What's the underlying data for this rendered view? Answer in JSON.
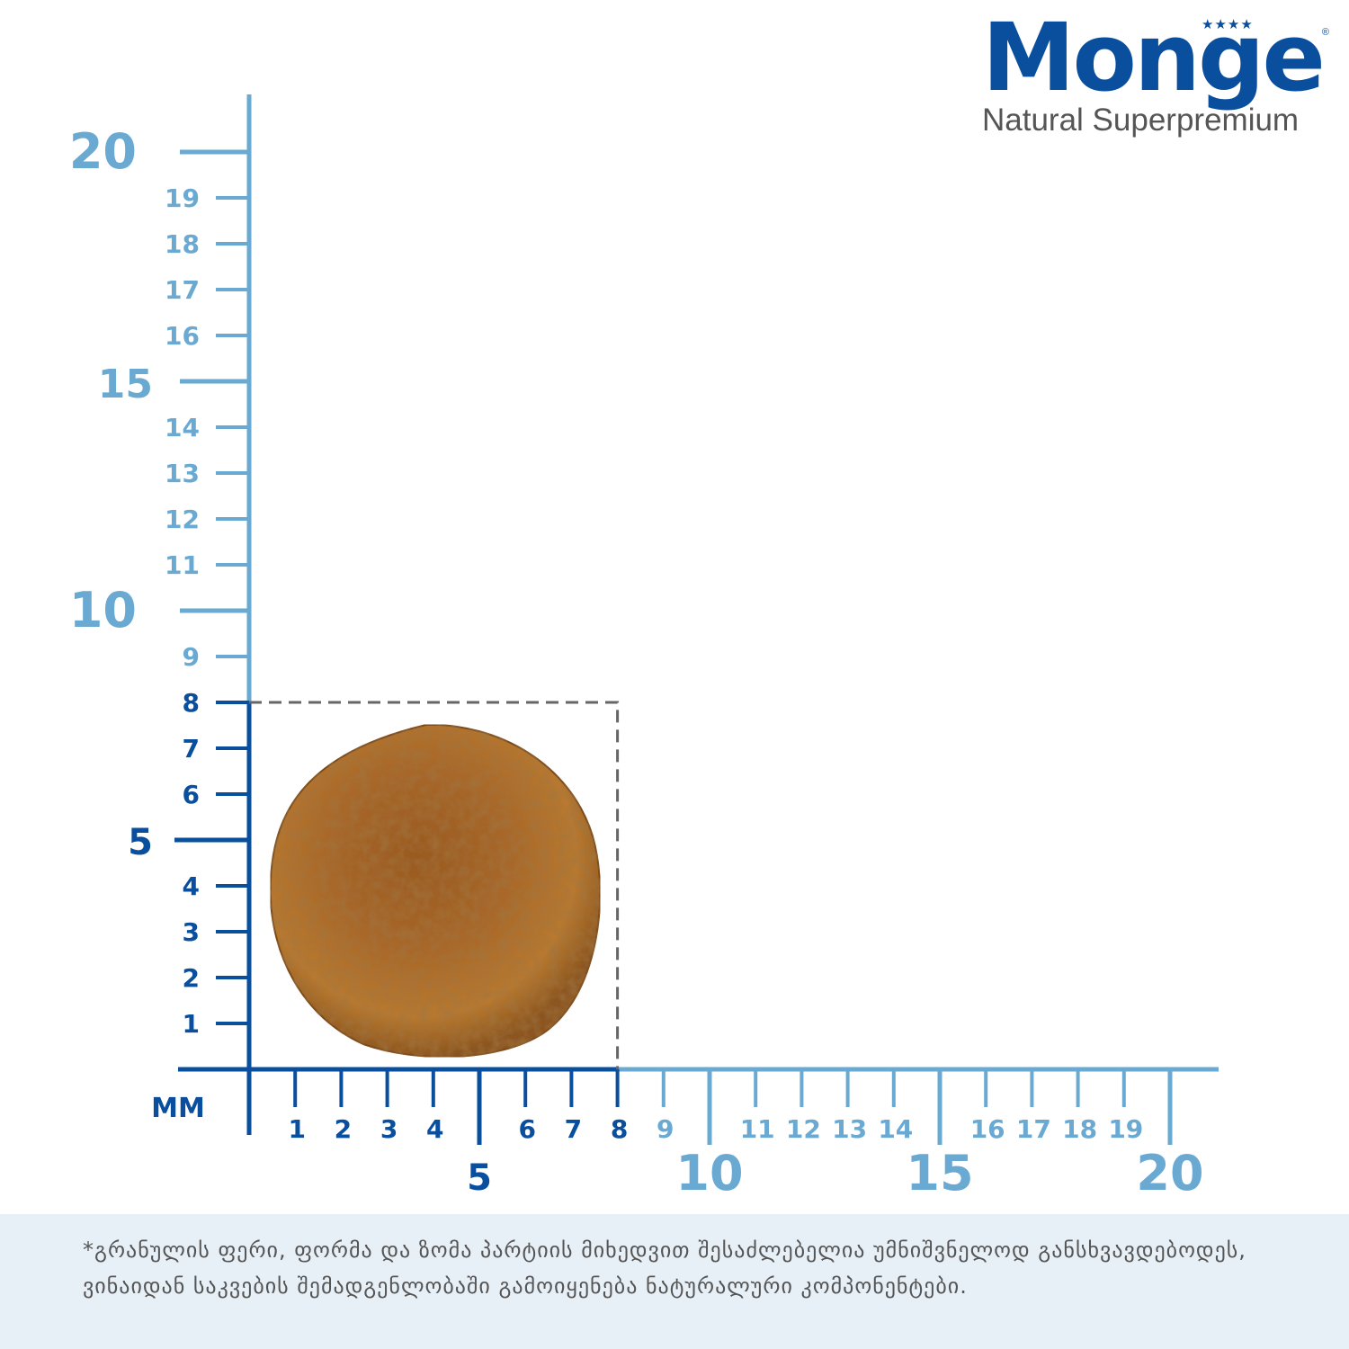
{
  "brand": {
    "name": "Monge",
    "tagline": "Natural Superpremium",
    "stars": "★★★★",
    "registered": "®"
  },
  "scale": {
    "unit_label": "MM",
    "x_ticks": [
      {
        "value": 1,
        "label": "1",
        "major": false
      },
      {
        "value": 2,
        "label": "2",
        "major": false
      },
      {
        "value": 3,
        "label": "3",
        "major": false
      },
      {
        "value": 4,
        "label": "4",
        "major": false
      },
      {
        "value": 5,
        "label": "5",
        "major": true
      },
      {
        "value": 6,
        "label": "6",
        "major": false
      },
      {
        "value": 7,
        "label": "7",
        "major": false
      },
      {
        "value": 8,
        "label": "8",
        "major": false
      },
      {
        "value": 9,
        "label": "9",
        "major": false
      },
      {
        "value": 10,
        "label": "10",
        "major": true
      },
      {
        "value": 11,
        "label": "11",
        "major": false
      },
      {
        "value": 12,
        "label": "12",
        "major": false
      },
      {
        "value": 13,
        "label": "13",
        "major": false
      },
      {
        "value": 14,
        "label": "14",
        "major": false
      },
      {
        "value": 15,
        "label": "15",
        "major": true
      },
      {
        "value": 16,
        "label": "16",
        "major": false
      },
      {
        "value": 17,
        "label": "17",
        "major": false
      },
      {
        "value": 18,
        "label": "18",
        "major": false
      },
      {
        "value": 19,
        "label": "19",
        "major": false
      },
      {
        "value": 20,
        "label": "20",
        "major": true
      }
    ],
    "y_ticks": [
      {
        "value": 1,
        "label": "1",
        "major": false
      },
      {
        "value": 2,
        "label": "2",
        "major": false
      },
      {
        "value": 3,
        "label": "3",
        "major": false
      },
      {
        "value": 4,
        "label": "4",
        "major": false
      },
      {
        "value": 5,
        "label": "5",
        "major": true
      },
      {
        "value": 6,
        "label": "6",
        "major": false
      },
      {
        "value": 7,
        "label": "7",
        "major": false
      },
      {
        "value": 8,
        "label": "8",
        "major": false
      },
      {
        "value": 9,
        "label": "9",
        "major": false
      },
      {
        "value": 10,
        "label": "10",
        "major": true
      },
      {
        "value": 11,
        "label": "11",
        "major": false
      },
      {
        "value": 12,
        "label": "12",
        "major": false
      },
      {
        "value": 13,
        "label": "13",
        "major": false
      },
      {
        "value": 14,
        "label": "14",
        "major": false
      },
      {
        "value": 15,
        "label": "15",
        "major": true
      },
      {
        "value": 16,
        "label": "16",
        "major": false
      },
      {
        "value": 17,
        "label": "17",
        "major": false
      },
      {
        "value": 18,
        "label": "18",
        "major": false
      },
      {
        "value": 19,
        "label": "19",
        "major": false
      },
      {
        "value": 20,
        "label": "20",
        "major": true
      }
    ],
    "kibble_size_mm": 8,
    "colors": {
      "dark": "#0a4f9e",
      "light": "#6aaad2",
      "dashed_box": "#666666",
      "kibble": "#a8672a"
    }
  },
  "footer": {
    "note": "*გრანულის ფერი, ფორმა და ზომა პარტიის მიხედვით შესაძლებელია უმნიშვნელოდ განსხვავდებოდეს,  ვინაიდან საკვების შემადგენლობაში გამოიყენება ნატურალური კომპონენტები."
  }
}
